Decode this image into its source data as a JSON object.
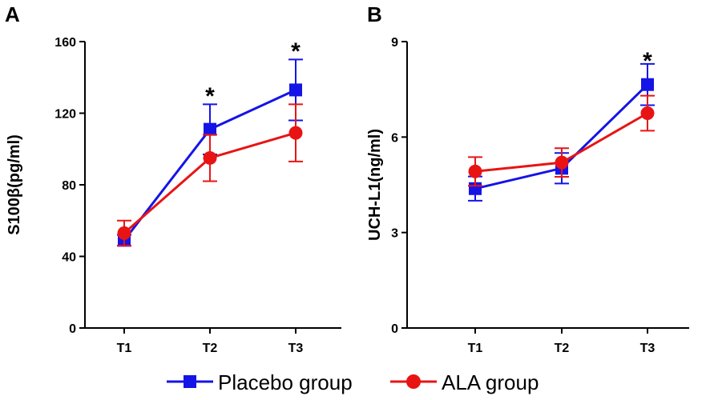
{
  "chart_data": [
    {
      "type": "line",
      "panel_label": "A",
      "ylabel": "S100β(pg/ml)",
      "xlabel": "",
      "categories": [
        "T1",
        "T2",
        "T3"
      ],
      "ylim": [
        0,
        160
      ],
      "yticks": [
        0,
        40,
        80,
        120,
        160
      ],
      "series": [
        {
          "name": "Placebo group",
          "color": "#1414e6",
          "marker": "square",
          "values": [
            49,
            111,
            133
          ],
          "err": [
            3,
            14,
            17
          ]
        },
        {
          "name": "ALA group",
          "color": "#e81414",
          "marker": "circle",
          "values": [
            53,
            95,
            109
          ],
          "err": [
            7,
            13,
            16
          ]
        }
      ],
      "annotations": [
        {
          "category": "T2",
          "y": 135,
          "text": "*"
        },
        {
          "category": "T3",
          "y": 160,
          "text": "*"
        }
      ]
    },
    {
      "type": "line",
      "panel_label": "B",
      "ylabel": "UCH-L1(ng/ml)",
      "xlabel": "",
      "categories": [
        "T1",
        "T2",
        "T3"
      ],
      "ylim": [
        0,
        9
      ],
      "yticks": [
        0,
        3,
        6,
        9
      ],
      "series": [
        {
          "name": "Placebo group",
          "color": "#1414e6",
          "marker": "square",
          "values": [
            4.38,
            5.02,
            7.65
          ],
          "err": [
            0.38,
            0.48,
            0.65
          ]
        },
        {
          "name": "ALA group",
          "color": "#e81414",
          "marker": "circle",
          "values": [
            4.92,
            5.2,
            6.75
          ],
          "err": [
            0.45,
            0.45,
            0.55
          ]
        }
      ],
      "annotations": [
        {
          "category": "T3",
          "y": 8.7,
          "text": "*"
        }
      ]
    }
  ],
  "legend": {
    "position": "bottom-center",
    "items": [
      {
        "label": "Placebo group",
        "color": "#1414e6",
        "marker": "square"
      },
      {
        "label": "ALA group",
        "color": "#e81414",
        "marker": "circle"
      }
    ]
  }
}
